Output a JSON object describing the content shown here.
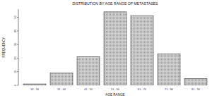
{
  "chart_data": {
    "type": "bar",
    "title": "DISTRIBUTION BY AGE RANGE OF METASTASES",
    "x_label": "AGE RANGE",
    "y_label": "FREQUENCY",
    "categories": [
      "18 - 30",
      "31 - 40",
      "41 - 50",
      "51 - 60",
      "61 - 70",
      "71 - 80",
      "81 - 90"
    ],
    "values": [
      1,
      9,
      21,
      54,
      51,
      23,
      5
    ],
    "color": "#cfcfcf",
    "ylim": [
      0,
      56
    ],
    "yticks": [
      0,
      10,
      20,
      30,
      40,
      50
    ],
    "grid": false
  }
}
